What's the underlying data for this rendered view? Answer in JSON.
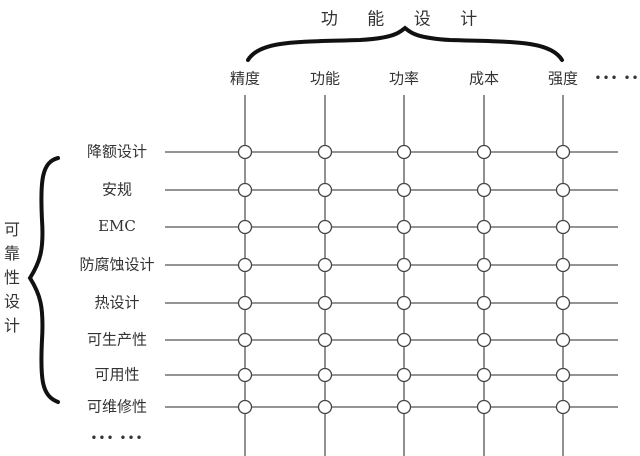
{
  "top_group": {
    "title": "功 能 设 计"
  },
  "left_group": {
    "title": "可靠性设计"
  },
  "columns": [
    "精度",
    "功能",
    "功率",
    "成本",
    "强度"
  ],
  "columns_more": "••• ••",
  "rows": [
    "降额设计",
    "安规",
    "EMC",
    "防腐蚀设计",
    "热设计",
    "可生产性",
    "可用性",
    "可维修性"
  ],
  "rows_more": "••• •••"
}
